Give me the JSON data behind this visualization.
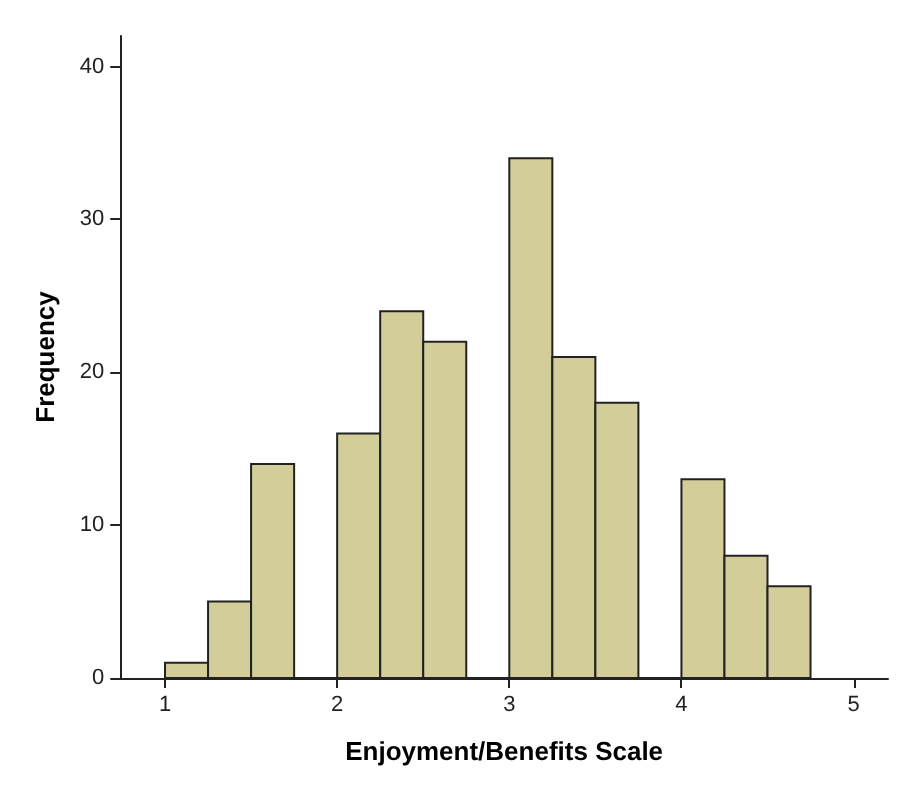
{
  "chart_data": {
    "type": "histogram",
    "xlabel": "Enjoyment/Benefits Scale",
    "ylabel": "Frequency",
    "bins": [
      1,
      1.25,
      1.5,
      1.75,
      2,
      2.25,
      2.5,
      2.75,
      3,
      3.25,
      3.5,
      3.75,
      4,
      4.25,
      4.5,
      4.75
    ],
    "values": [
      1,
      5,
      14,
      0,
      16,
      24,
      22,
      0,
      34,
      21,
      18,
      0,
      13,
      8,
      6
    ],
    "color": "#d3ce99",
    "xlim": [
      0.74,
      5.2
    ],
    "xticks": [
      1,
      2,
      3,
      4,
      5
    ],
    "ylim": [
      0,
      42
    ],
    "yticks": [
      0,
      10,
      20,
      30,
      40
    ],
    "grid": false
  }
}
